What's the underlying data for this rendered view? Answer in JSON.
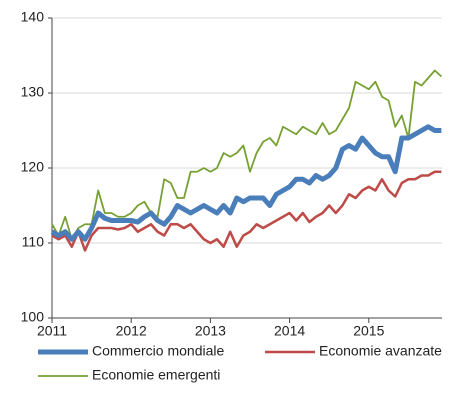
{
  "chart_data": {
    "type": "line",
    "categories": [
      "2011",
      null,
      null,
      null,
      null,
      null,
      null,
      null,
      null,
      null,
      null,
      null,
      "2012",
      null,
      null,
      null,
      null,
      null,
      null,
      null,
      null,
      null,
      null,
      null,
      "2013",
      null,
      null,
      null,
      null,
      null,
      null,
      null,
      null,
      null,
      null,
      null,
      "2014",
      null,
      null,
      null,
      null,
      null,
      null,
      null,
      null,
      null,
      null,
      null,
      "2015",
      null,
      null,
      null,
      null,
      null,
      null,
      null,
      null,
      null,
      null,
      null
    ],
    "series": [
      {
        "name": "Commercio mondiale",
        "color": "#4a7ebb",
        "width": 5,
        "values": [
          111.5,
          111,
          111.5,
          110.5,
          111.5,
          110.5,
          112,
          114,
          113.3,
          113,
          113,
          113,
          113,
          112.8,
          113.5,
          114,
          113,
          112.5,
          113.5,
          115,
          114.5,
          114,
          114.5,
          115,
          114.5,
          114,
          115,
          114,
          116,
          115.5,
          116,
          116,
          116,
          115,
          116.5,
          117,
          117.5,
          118.5,
          118.5,
          118,
          119,
          118.5,
          119,
          120,
          122.5,
          123,
          122.5,
          124,
          123,
          122,
          121.5,
          121.5,
          119.5,
          124,
          124,
          124.5,
          125,
          125.5,
          125,
          125
        ]
      },
      {
        "name": "Economie avanzate",
        "color": "#be4b48",
        "width": 2.5,
        "values": [
          111,
          110.5,
          111,
          109.5,
          111.5,
          109,
          111,
          112,
          112,
          112,
          111.8,
          112,
          112.5,
          111.5,
          112,
          112.5,
          111.5,
          111,
          112.5,
          112.5,
          112,
          112.5,
          111.5,
          110.5,
          110,
          110.5,
          109.5,
          111.5,
          109.5,
          111,
          111.5,
          112.5,
          112,
          112.5,
          113,
          113.5,
          114,
          113,
          114,
          112.8,
          113.5,
          114,
          115,
          114,
          115,
          116.5,
          116,
          117,
          117.5,
          117,
          118.5,
          117,
          116.2,
          118,
          118.5,
          118.5,
          119,
          119,
          119.5,
          119.5
        ]
      },
      {
        "name": "Economie emergenti",
        "color": "#77a033",
        "width": 1.8,
        "values": [
          112.5,
          111,
          113.5,
          110.5,
          112,
          112.5,
          112.5,
          117,
          114,
          114,
          113.5,
          113.5,
          114,
          115,
          115.5,
          114,
          113.5,
          118.5,
          118,
          116,
          116,
          119.5,
          119.5,
          120,
          119.5,
          120,
          122,
          121.5,
          122,
          123,
          119.5,
          122,
          123.5,
          124,
          123,
          125.5,
          125,
          124.5,
          125.5,
          125,
          124.5,
          126,
          124.5,
          125,
          126.5,
          128,
          131.5,
          131,
          130.5,
          131.5,
          129.5,
          129,
          125.5,
          127,
          124,
          131.5,
          131,
          132,
          133,
          132.2
        ]
      }
    ],
    "ylim": [
      100,
      140
    ],
    "yticks": [
      100,
      110,
      120,
      130,
      140
    ],
    "grid": true,
    "legend": "bottom"
  }
}
